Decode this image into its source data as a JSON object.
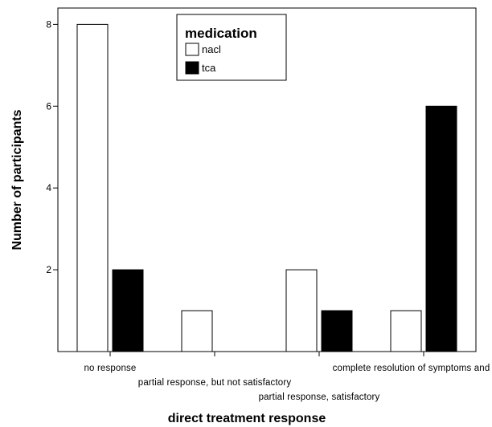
{
  "chart_data": {
    "type": "bar",
    "xlabel": "direct treatment response",
    "ylabel": "Number of participants",
    "categories": [
      "no response",
      "partial response, but not satisfactory",
      "partial response, satisfactory",
      "complete resolution of symptoms and signs"
    ],
    "series": [
      {
        "name": "nacl",
        "values": [
          8,
          1,
          2,
          1
        ],
        "color": "#ffffff"
      },
      {
        "name": "tca",
        "values": [
          2,
          0,
          1,
          6
        ],
        "color": "#000000"
      }
    ],
    "ylim": [
      0,
      8.4
    ],
    "yticks": [
      2,
      4,
      6,
      8
    ],
    "grid": false,
    "legend": {
      "title": "medication",
      "position": "top-center"
    }
  }
}
